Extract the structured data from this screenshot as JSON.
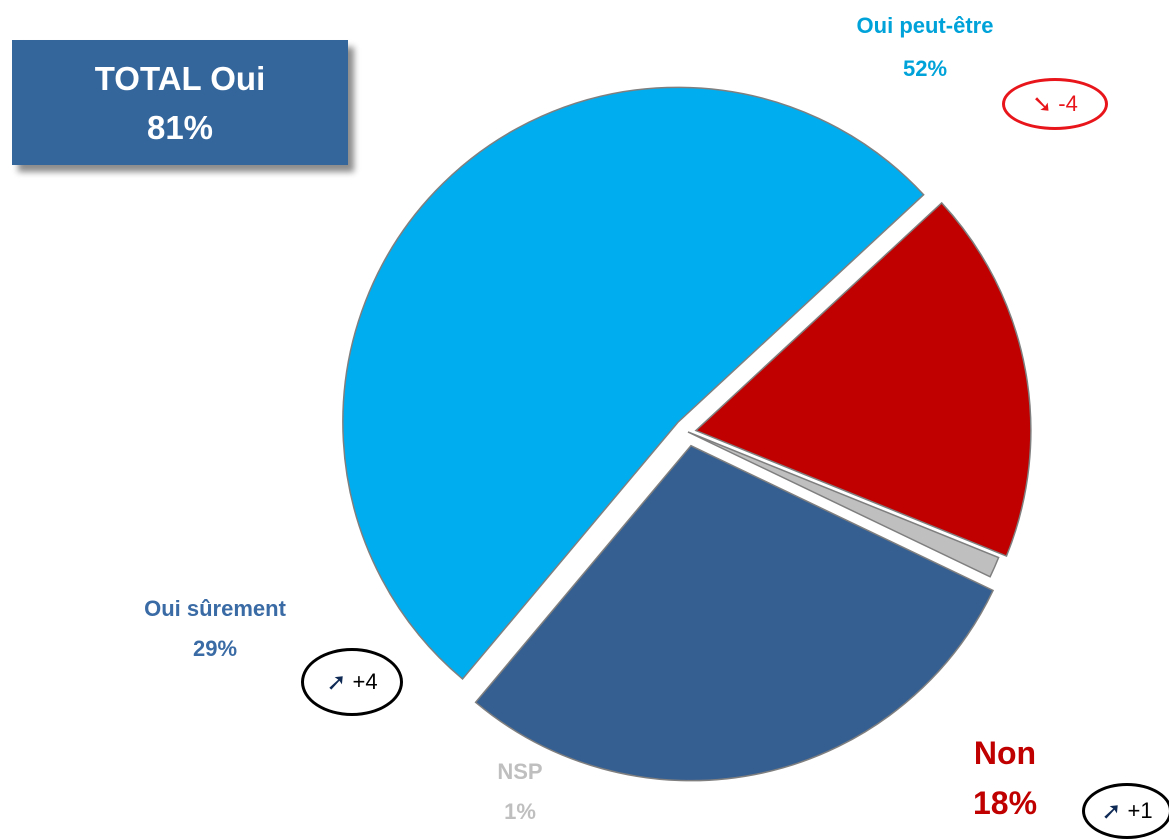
{
  "total": {
    "title": "TOTAL Oui",
    "value": "81%"
  },
  "chart_data": {
    "type": "pie",
    "slices": [
      {
        "label": "Oui peut-être",
        "value": 52,
        "display": "52%",
        "color": "#00aeef",
        "change": "-4",
        "trend": "down",
        "badge_color": "#e8161b"
      },
      {
        "label": "Non",
        "value": 18,
        "display": "18%",
        "color": "#c00000",
        "change": "+1",
        "trend": "up",
        "badge_color": "#000000"
      },
      {
        "label": "NSP",
        "value": 1,
        "display": "1%",
        "color": "#bfbfbf",
        "change": "",
        "trend": "",
        "badge_color": ""
      },
      {
        "label": "Oui sûrement",
        "value": 29,
        "display": "29%",
        "color": "#365f91",
        "change": "+4",
        "trend": "up",
        "badge_color": "#000000"
      }
    ],
    "label_colors": {
      "Oui peut-être": "#00a3d9",
      "Non": "#c00000",
      "NSP": "#bfbfbf",
      "Oui sûrement": "#3a6ba5"
    },
    "trend_icons": {
      "up": "arrow-up-right-icon",
      "down": "arrow-down-right-icon"
    },
    "trend_glyphs": {
      "up": "➚",
      "down": "➘"
    },
    "trend_glyph_colors": {
      "up": "#0f2a55",
      "down": "#e8161b"
    }
  }
}
